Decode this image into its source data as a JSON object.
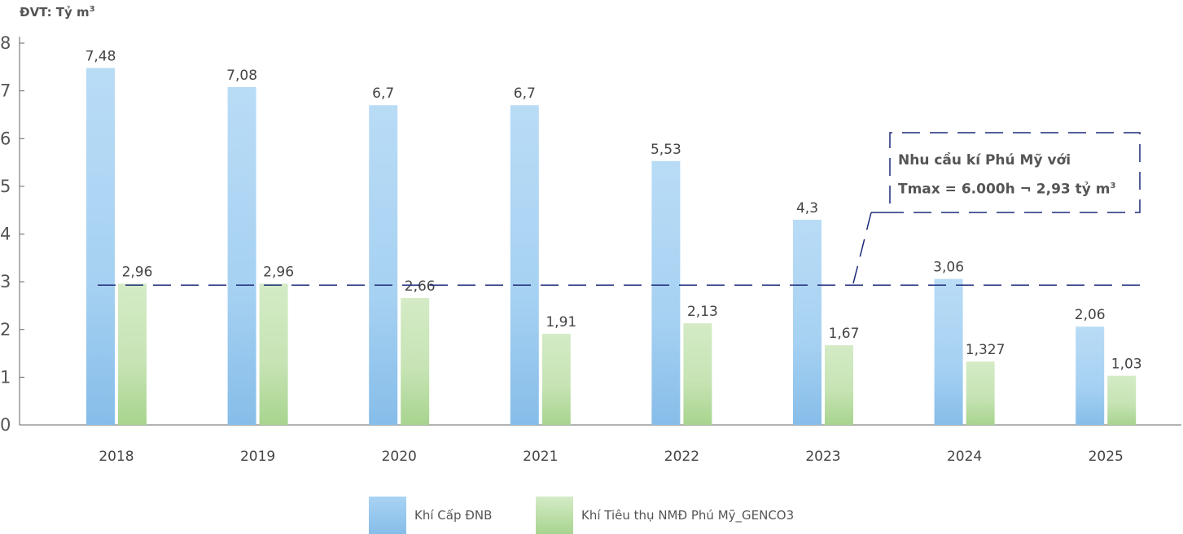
{
  "unit_label": "ĐVT: Tỷ m",
  "unit_superscript": "3",
  "annotation": {
    "line1": "Nhu cầu kí Phú Mỹ với",
    "line2": "Tmax = 6.000h ¬ 2,93 tỷ m",
    "line2_superscript": "3",
    "reference_value": 2.93
  },
  "legend": [
    {
      "label": "Khí Cấp ĐNB",
      "color": "#8fc4ec"
    },
    {
      "label": "Khí Tiêu thụ NMĐ Phú Mỹ_GENCO3",
      "color": "#b6dca0"
    }
  ],
  "chart_data": {
    "type": "bar",
    "categories": [
      "2018",
      "2019",
      "2020",
      "2021",
      "2022",
      "2023",
      "2024",
      "2025"
    ],
    "series": [
      {
        "name": "Khí Cấp ĐNB",
        "values": [
          7.48,
          7.08,
          6.7,
          6.7,
          5.53,
          4.3,
          3.06,
          2.06
        ],
        "labels": [
          "7,48",
          "7,08",
          "6,7",
          "6,7",
          "5,53",
          "4,3",
          "3,06",
          "2,06"
        ],
        "color": "#8fc4ec"
      },
      {
        "name": "Khí Tiêu thụ NMĐ Phú Mỹ_GENCO3",
        "values": [
          2.96,
          2.96,
          2.66,
          1.91,
          2.13,
          1.67,
          1.327,
          1.03
        ],
        "labels": [
          "2,96",
          "2,96",
          "2,66",
          "1,91",
          "2,13",
          "1,67",
          "1,327",
          "1,03"
        ],
        "color": "#b6dca0"
      }
    ],
    "yticks": [
      "0",
      "1",
      "2",
      "3",
      "4",
      "5",
      "6",
      "7",
      "8"
    ],
    "ylim": [
      0,
      8
    ],
    "grid": false,
    "legend_position": "bottom"
  }
}
